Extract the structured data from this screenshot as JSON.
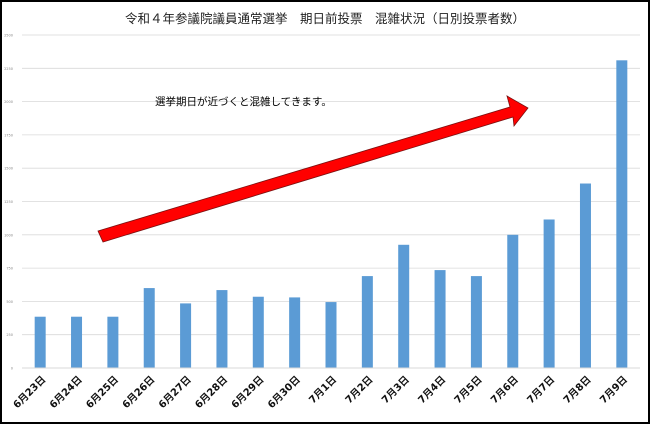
{
  "chart_data": {
    "type": "bar",
    "title": "令和４年参議院議員通常選挙　期日前投票　混雑状況（日別投票者数）",
    "annotation": "選挙期日が近づくと混雑してきます。",
    "categories": [
      "6月23日",
      "6月24日",
      "6月25日",
      "6月26日",
      "6月27日",
      "6月28日",
      "6月29日",
      "6月30日",
      "7月1日",
      "7月2日",
      "7月3日",
      "7月4日",
      "7月5日",
      "7月6日",
      "7月7日",
      "7月8日",
      "7月9日"
    ],
    "values": [
      385,
      385,
      385,
      600,
      485,
      585,
      535,
      530,
      495,
      690,
      925,
      735,
      690,
      1000,
      1115,
      1385,
      2310
    ],
    "ylim": [
      0,
      2500
    ],
    "yticks": [
      0,
      250,
      500,
      750,
      1000,
      1250,
      1500,
      1750,
      2000,
      2250,
      2500
    ],
    "bar_color": "#5B9BD5",
    "arrow_color": "#FF0000",
    "grid": true
  }
}
